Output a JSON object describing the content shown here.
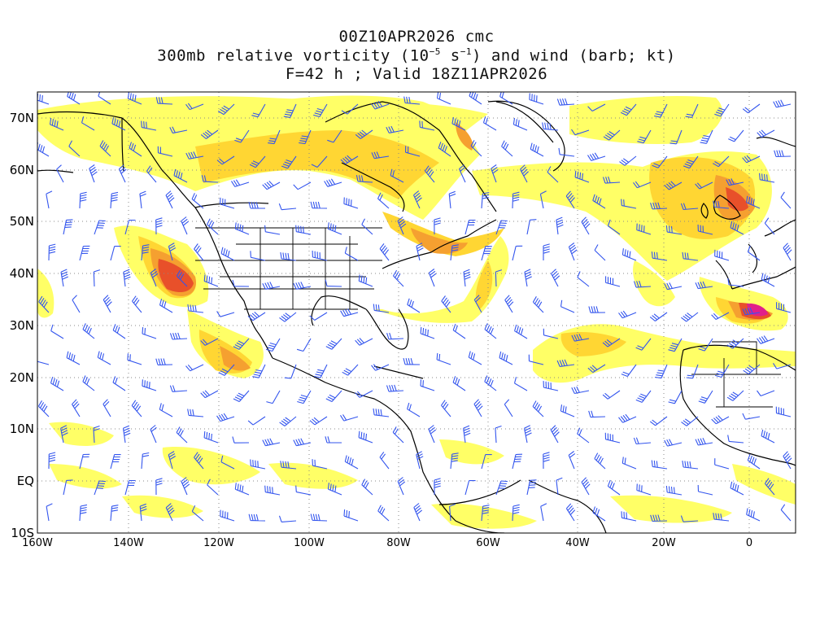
{
  "title": {
    "line1": "00Z10APR2026 cmc",
    "line2_pre": "300mb relative vorticity (10",
    "line2_exp": "−5",
    "line2_mid": " s",
    "line2_exp2": "−1",
    "line2_post": ") and wind (barb; kt)",
    "line3": "F=42 h ; Valid 18Z11APR2026"
  },
  "axes": {
    "lat_labels": [
      "70N",
      "60N",
      "50N",
      "40N",
      "30N",
      "20N",
      "10N",
      "EQ",
      "10S"
    ],
    "lon_labels": [
      "160W",
      "140W",
      "120W",
      "100W",
      "80W",
      "60W",
      "40W",
      "20W",
      "0"
    ]
  },
  "colors": {
    "shade_light": "#ffff66",
    "shade_mid": "#ffd633",
    "shade_orange": "#f5a030",
    "shade_red": "#e8502a",
    "shade_magenta": "#e0208a",
    "barb": "#3355ee",
    "grid": "#888888",
    "coast": "#000000"
  }
}
